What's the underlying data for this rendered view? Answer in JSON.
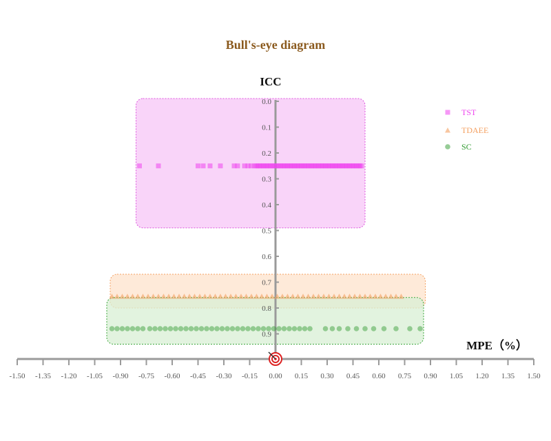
{
  "chart_data": {
    "type": "scatter",
    "title": "Bull's-eye diagram",
    "xlabel": "MPE（%）",
    "ylabel": "ICC",
    "xlim": [
      -1.5,
      1.5
    ],
    "ylim": [
      0.0,
      1.0
    ],
    "y_inverted": true,
    "x_ticks": [
      "-1.50",
      "-1.35",
      "-1.20",
      "-1.05",
      "-0.90",
      "-0.75",
      "-0.60",
      "-0.45",
      "-0.30",
      "-0.15",
      "0.00",
      "0.15",
      "0.30",
      "0.45",
      "0.60",
      "0.75",
      "0.90",
      "1.05",
      "1.20",
      "1.35",
      "1.50"
    ],
    "y_ticks": [
      "0.0",
      "0.1",
      "0.2",
      "0.3",
      "0.4",
      "0.5",
      "0.6",
      "0.7",
      "0.8",
      "0.9"
    ],
    "legend_position": "top-right",
    "series": [
      {
        "name": "TST",
        "marker": "square",
        "color": "#ee44ee",
        "region": {
          "x": [
            -0.81,
            0.52
          ],
          "y": [
            0.0,
            0.49
          ],
          "fill": "#f7c6f7",
          "stroke": "#dd55dd"
        },
        "points": [
          [
            -0.79,
            0.25
          ],
          [
            -0.68,
            0.25
          ],
          [
            -0.45,
            0.25
          ],
          [
            -0.42,
            0.25
          ],
          [
            -0.38,
            0.25
          ],
          [
            -0.32,
            0.25
          ],
          [
            -0.24,
            0.25
          ],
          [
            -0.22,
            0.25
          ],
          [
            -0.18,
            0.25
          ],
          [
            -0.16,
            0.25
          ],
          [
            -0.14,
            0.25
          ],
          [
            -0.12,
            0.25
          ],
          [
            -0.11,
            0.25
          ],
          [
            -0.1,
            0.25
          ],
          [
            -0.09,
            0.25
          ],
          [
            -0.08,
            0.25
          ],
          [
            -0.07,
            0.25
          ],
          [
            -0.06,
            0.25
          ],
          [
            -0.05,
            0.25
          ],
          [
            -0.04,
            0.25
          ],
          [
            -0.03,
            0.25
          ],
          [
            -0.02,
            0.25
          ],
          [
            -0.01,
            0.25
          ],
          [
            0.0,
            0.25
          ],
          [
            0.01,
            0.25
          ],
          [
            0.02,
            0.25
          ],
          [
            0.03,
            0.25
          ],
          [
            0.04,
            0.25
          ],
          [
            0.05,
            0.25
          ],
          [
            0.06,
            0.25
          ],
          [
            0.07,
            0.25
          ],
          [
            0.08,
            0.25
          ],
          [
            0.09,
            0.25
          ],
          [
            0.1,
            0.25
          ],
          [
            0.11,
            0.25
          ],
          [
            0.12,
            0.25
          ],
          [
            0.13,
            0.25
          ],
          [
            0.14,
            0.25
          ],
          [
            0.15,
            0.25
          ],
          [
            0.16,
            0.25
          ],
          [
            0.17,
            0.25
          ],
          [
            0.18,
            0.25
          ],
          [
            0.19,
            0.25
          ],
          [
            0.2,
            0.25
          ],
          [
            0.21,
            0.25
          ],
          [
            0.22,
            0.25
          ],
          [
            0.23,
            0.25
          ],
          [
            0.24,
            0.25
          ],
          [
            0.25,
            0.25
          ],
          [
            0.26,
            0.25
          ],
          [
            0.27,
            0.25
          ],
          [
            0.28,
            0.25
          ],
          [
            0.29,
            0.25
          ],
          [
            0.3,
            0.25
          ],
          [
            0.31,
            0.25
          ],
          [
            0.32,
            0.25
          ],
          [
            0.33,
            0.25
          ],
          [
            0.34,
            0.25
          ],
          [
            0.35,
            0.25
          ],
          [
            0.36,
            0.25
          ],
          [
            0.37,
            0.25
          ],
          [
            0.38,
            0.25
          ],
          [
            0.39,
            0.25
          ],
          [
            0.4,
            0.25
          ],
          [
            0.41,
            0.25
          ],
          [
            0.42,
            0.25
          ],
          [
            0.43,
            0.25
          ],
          [
            0.44,
            0.25
          ],
          [
            0.45,
            0.25
          ],
          [
            0.46,
            0.25
          ],
          [
            0.47,
            0.25
          ],
          [
            0.48,
            0.25
          ],
          [
            0.49,
            0.25
          ],
          [
            0.5,
            0.25
          ]
        ]
      },
      {
        "name": "TDAEE",
        "marker": "triangle",
        "color": "#f4a060",
        "region": {
          "x": [
            -0.96,
            0.87
          ],
          "y": [
            0.68,
            0.8
          ],
          "fill": "#fde3cc",
          "stroke": "#f4a060"
        },
        "points": [
          [
            -0.95,
            0.755
          ],
          [
            -0.92,
            0.755
          ],
          [
            -0.89,
            0.755
          ],
          [
            -0.86,
            0.755
          ],
          [
            -0.83,
            0.755
          ],
          [
            -0.8,
            0.755
          ],
          [
            -0.77,
            0.755
          ],
          [
            -0.74,
            0.755
          ],
          [
            -0.71,
            0.755
          ],
          [
            -0.68,
            0.755
          ],
          [
            -0.65,
            0.755
          ],
          [
            -0.62,
            0.755
          ],
          [
            -0.59,
            0.755
          ],
          [
            -0.56,
            0.755
          ],
          [
            -0.53,
            0.755
          ],
          [
            -0.5,
            0.755
          ],
          [
            -0.47,
            0.755
          ],
          [
            -0.44,
            0.755
          ],
          [
            -0.41,
            0.755
          ],
          [
            -0.38,
            0.755
          ],
          [
            -0.35,
            0.755
          ],
          [
            -0.32,
            0.755
          ],
          [
            -0.29,
            0.755
          ],
          [
            -0.26,
            0.755
          ],
          [
            -0.23,
            0.755
          ],
          [
            -0.2,
            0.755
          ],
          [
            -0.17,
            0.755
          ],
          [
            -0.14,
            0.755
          ],
          [
            -0.11,
            0.755
          ],
          [
            -0.08,
            0.755
          ],
          [
            -0.05,
            0.755
          ],
          [
            -0.02,
            0.755
          ],
          [
            0.01,
            0.755
          ],
          [
            0.04,
            0.755
          ],
          [
            0.07,
            0.755
          ],
          [
            0.1,
            0.755
          ],
          [
            0.13,
            0.755
          ],
          [
            0.16,
            0.755
          ],
          [
            0.19,
            0.755
          ],
          [
            0.22,
            0.755
          ],
          [
            0.25,
            0.755
          ],
          [
            0.28,
            0.755
          ],
          [
            0.31,
            0.755
          ],
          [
            0.34,
            0.755
          ],
          [
            0.37,
            0.755
          ],
          [
            0.4,
            0.755
          ],
          [
            0.43,
            0.755
          ],
          [
            0.46,
            0.755
          ],
          [
            0.49,
            0.755
          ],
          [
            0.52,
            0.755
          ],
          [
            0.55,
            0.755
          ],
          [
            0.58,
            0.755
          ],
          [
            0.61,
            0.755
          ],
          [
            0.64,
            0.755
          ],
          [
            0.67,
            0.755
          ],
          [
            0.7,
            0.755
          ],
          [
            0.73,
            0.755
          ]
        ]
      },
      {
        "name": "SC",
        "marker": "circle",
        "color": "#2e9a2e",
        "region": {
          "x": [
            -0.98,
            0.86
          ],
          "y": [
            0.77,
            0.94
          ],
          "fill": "#d8efd4",
          "stroke": "#3aa63a"
        },
        "points": [
          [
            -0.95,
            0.88
          ],
          [
            -0.92,
            0.88
          ],
          [
            -0.89,
            0.88
          ],
          [
            -0.86,
            0.88
          ],
          [
            -0.83,
            0.88
          ],
          [
            -0.8,
            0.88
          ],
          [
            -0.77,
            0.88
          ],
          [
            -0.73,
            0.88
          ],
          [
            -0.7,
            0.88
          ],
          [
            -0.67,
            0.88
          ],
          [
            -0.64,
            0.88
          ],
          [
            -0.61,
            0.88
          ],
          [
            -0.58,
            0.88
          ],
          [
            -0.55,
            0.88
          ],
          [
            -0.52,
            0.88
          ],
          [
            -0.49,
            0.88
          ],
          [
            -0.46,
            0.88
          ],
          [
            -0.43,
            0.88
          ],
          [
            -0.4,
            0.88
          ],
          [
            -0.37,
            0.88
          ],
          [
            -0.34,
            0.88
          ],
          [
            -0.31,
            0.88
          ],
          [
            -0.28,
            0.88
          ],
          [
            -0.25,
            0.88
          ],
          [
            -0.22,
            0.88
          ],
          [
            -0.19,
            0.88
          ],
          [
            -0.16,
            0.88
          ],
          [
            -0.13,
            0.88
          ],
          [
            -0.1,
            0.88
          ],
          [
            -0.07,
            0.88
          ],
          [
            -0.04,
            0.88
          ],
          [
            -0.01,
            0.88
          ],
          [
            0.02,
            0.88
          ],
          [
            0.05,
            0.88
          ],
          [
            0.08,
            0.88
          ],
          [
            0.11,
            0.88
          ],
          [
            0.14,
            0.88
          ],
          [
            0.17,
            0.88
          ],
          [
            0.2,
            0.88
          ],
          [
            0.29,
            0.88
          ],
          [
            0.33,
            0.88
          ],
          [
            0.37,
            0.88
          ],
          [
            0.42,
            0.88
          ],
          [
            0.47,
            0.88
          ],
          [
            0.52,
            0.88
          ],
          [
            0.57,
            0.88
          ],
          [
            0.63,
            0.88
          ],
          [
            0.7,
            0.88
          ],
          [
            0.78,
            0.88
          ],
          [
            0.84,
            0.88
          ]
        ]
      }
    ]
  }
}
